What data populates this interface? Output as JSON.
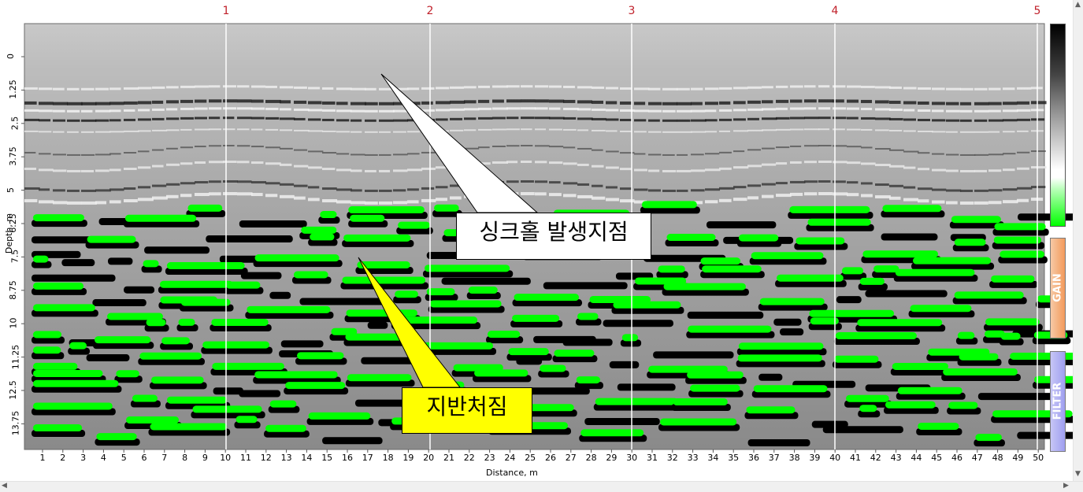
{
  "viewer": {
    "markers": [
      "1",
      "2",
      "3",
      "4",
      "5"
    ],
    "depth_axis": {
      "label": "Depth, m",
      "ticks": [
        "0",
        "1.25",
        "2.5",
        "3.75",
        "5",
        "6.25",
        "7.5",
        "8.75",
        "10",
        "11.25",
        "12.5",
        "13.75"
      ]
    },
    "distance_axis": {
      "label": "Distance, m",
      "ticks": [
        "1",
        "2",
        "3",
        "4",
        "5",
        "6",
        "7",
        "8",
        "9",
        "10",
        "11",
        "12",
        "13",
        "14",
        "15",
        "16",
        "17",
        "18",
        "19",
        "20",
        "21",
        "22",
        "23",
        "24",
        "25",
        "26",
        "27",
        "28",
        "29",
        "30",
        "31",
        "32",
        "33",
        "34",
        "35",
        "36",
        "37",
        "38",
        "39",
        "40",
        "41",
        "42",
        "43",
        "44",
        "45",
        "46",
        "47",
        "48",
        "49",
        "50"
      ]
    },
    "colorbar": {
      "colors": [
        "#000000",
        "#7f7f7f",
        "#ffffff",
        "#00ff00"
      ]
    },
    "side_tabs": {
      "gain": "GAIN",
      "filter": "FILTER"
    },
    "colors": {
      "positive": "#00ff00",
      "negative": "#000000",
      "background": "#c4c4c4",
      "marker": "#c0202a"
    }
  },
  "annotations": {
    "sinkhole": "싱크홀 발생지점",
    "subsidence": "지반처짐",
    "sinkhole_color": "#ffffff",
    "subsidence_color": "#ffff00"
  }
}
